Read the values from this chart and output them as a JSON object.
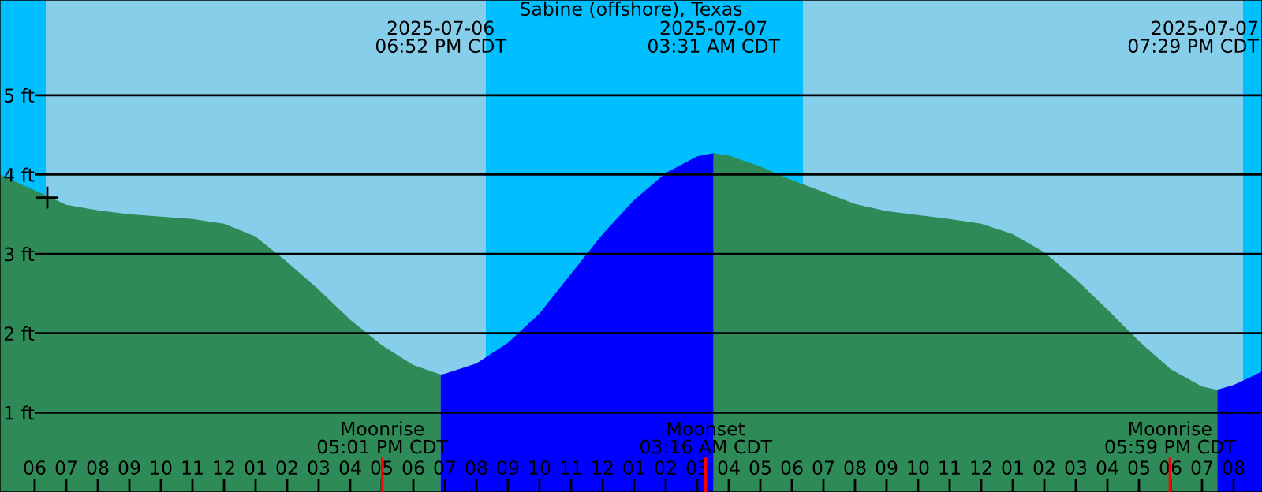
{
  "chart_data": {
    "type": "area",
    "title": "Sabine (offshore), Texas",
    "series": [
      {
        "color": "#2e8b57",
        "x": [
          "2025-07-06T04:54",
          "2025-07-06T06:00",
          "2025-07-06T07:00",
          "2025-07-06T08:00",
          "2025-07-06T09:00",
          "2025-07-06T10:00",
          "2025-07-06T11:00",
          "2025-07-06T12:00",
          "2025-07-06T13:00",
          "2025-07-06T14:00",
          "2025-07-06T15:00",
          "2025-07-06T16:00",
          "2025-07-06T17:00",
          "2025-07-06T18:00",
          "2025-07-06T18:52"
        ],
        "values": [
          4.0,
          3.8,
          3.62,
          3.55,
          3.5,
          3.47,
          3.44,
          3.38,
          3.22,
          2.9,
          2.55,
          2.17,
          1.85,
          1.6,
          1.48
        ]
      },
      {
        "color": "#0000ff",
        "x": [
          "2025-07-06T18:52",
          "2025-07-06T19:00",
          "2025-07-06T20:00",
          "2025-07-06T21:00",
          "2025-07-06T22:00",
          "2025-07-06T23:00",
          "2025-07-07T00:00",
          "2025-07-07T01:00",
          "2025-07-07T02:00",
          "2025-07-07T03:00",
          "2025-07-07T03:31"
        ],
        "values": [
          1.48,
          1.49,
          1.62,
          1.88,
          2.25,
          2.75,
          3.25,
          3.68,
          4.02,
          4.23,
          4.27
        ]
      },
      {
        "color": "#2e8b57",
        "x": [
          "2025-07-07T03:31",
          "2025-07-07T04:00",
          "2025-07-07T05:00",
          "2025-07-07T06:00",
          "2025-07-07T07:00",
          "2025-07-07T08:00",
          "2025-07-07T09:00",
          "2025-07-07T10:00",
          "2025-07-07T11:00",
          "2025-07-07T12:00",
          "2025-07-07T13:00",
          "2025-07-07T14:00",
          "2025-07-07T15:00",
          "2025-07-07T16:00",
          "2025-07-07T17:00",
          "2025-07-07T18:00",
          "2025-07-07T19:00",
          "2025-07-07T19:29"
        ],
        "values": [
          4.27,
          4.24,
          4.1,
          3.93,
          3.78,
          3.63,
          3.54,
          3.49,
          3.44,
          3.38,
          3.25,
          3.02,
          2.68,
          2.3,
          1.9,
          1.55,
          1.33,
          1.29
        ]
      },
      {
        "color": "#0000ff",
        "x": [
          "2025-07-07T19:29",
          "2025-07-07T20:00",
          "2025-07-07T20:30",
          "2025-07-07T20:54"
        ],
        "values": [
          1.29,
          1.35,
          1.44,
          1.52
        ]
      },
      {
        "type": "scatter",
        "color": "#000000",
        "marker": "cross",
        "x": [
          "2025-07-06T06:24"
        ],
        "values": [
          3.71
        ]
      }
    ],
    "bands": [
      {
        "axis": "x",
        "from": "2025-07-06T04:54",
        "to": "2025-07-06T06:21",
        "color": "#00bfff"
      },
      {
        "axis": "x",
        "from": "2025-07-06T06:21",
        "to": "2025-07-06T20:18",
        "color": "#87ceeb"
      },
      {
        "axis": "x",
        "from": "2025-07-06T20:18",
        "to": "2025-07-07T06:21",
        "color": "#00bfff"
      },
      {
        "axis": "x",
        "from": "2025-07-07T06:21",
        "to": "2025-07-07T20:18",
        "color": "#87ceeb"
      },
      {
        "axis": "x",
        "from": "2025-07-07T20:18",
        "to": "2025-07-07T20:54",
        "color": "#00bfff"
      }
    ],
    "annotations": [
      "2025-07-06\n06:52 PM CDT",
      "2025-07-07\n03:31 AM CDT",
      "2025-07-07\n07:29 PM CDT"
    ],
    "ref_lines": [
      {
        "axis": "x",
        "value": "2025-07-06T17:01",
        "label": "Moonrise\n05:01 PM CDT",
        "color": "#ff0000"
      },
      {
        "axis": "x",
        "value": "2025-07-07T03:16",
        "label": "Moonset\n03:16 AM CDT",
        "color": "#ff0000"
      },
      {
        "axis": "x",
        "value": "2025-07-07T17:59",
        "label": "Moonrise\n05:59 PM CDT",
        "color": "#ff0000"
      }
    ],
    "xlim": [
      "2025-07-06T04:54",
      "2025-07-07T20:54"
    ],
    "xticks": [
      {
        "value": "2025-07-06T06:00",
        "label": "06"
      },
      {
        "value": "2025-07-06T07:00",
        "label": "07"
      },
      {
        "value": "2025-07-06T08:00",
        "label": "08"
      },
      {
        "value": "2025-07-06T09:00",
        "label": "09"
      },
      {
        "value": "2025-07-06T10:00",
        "label": "10"
      },
      {
        "value": "2025-07-06T11:00",
        "label": "11"
      },
      {
        "value": "2025-07-06T12:00",
        "label": "12"
      },
      {
        "value": "2025-07-06T13:00",
        "label": "01"
      },
      {
        "value": "2025-07-06T14:00",
        "label": "02"
      },
      {
        "value": "2025-07-06T15:00",
        "label": "03"
      },
      {
        "value": "2025-07-06T16:00",
        "label": "04"
      },
      {
        "value": "2025-07-06T17:00",
        "label": "05"
      },
      {
        "value": "2025-07-06T18:00",
        "label": "06"
      },
      {
        "value": "2025-07-06T19:00",
        "label": "07"
      },
      {
        "value": "2025-07-06T20:00",
        "label": "08"
      },
      {
        "value": "2025-07-06T21:00",
        "label": "09"
      },
      {
        "value": "2025-07-06T22:00",
        "label": "10"
      },
      {
        "value": "2025-07-06T23:00",
        "label": "11"
      },
      {
        "value": "2025-07-07T00:00",
        "label": "12"
      },
      {
        "value": "2025-07-07T01:00",
        "label": "01"
      },
      {
        "value": "2025-07-07T02:00",
        "label": "02"
      },
      {
        "value": "2025-07-07T03:00",
        "label": "03"
      },
      {
        "value": "2025-07-07T04:00",
        "label": "04"
      },
      {
        "value": "2025-07-07T05:00",
        "label": "05"
      },
      {
        "value": "2025-07-07T06:00",
        "label": "06"
      },
      {
        "value": "2025-07-07T07:00",
        "label": "07"
      },
      {
        "value": "2025-07-07T08:00",
        "label": "08"
      },
      {
        "value": "2025-07-07T09:00",
        "label": "09"
      },
      {
        "value": "2025-07-07T10:00",
        "label": "10"
      },
      {
        "value": "2025-07-07T11:00",
        "label": "11"
      },
      {
        "value": "2025-07-07T12:00",
        "label": "12"
      },
      {
        "value": "2025-07-07T13:00",
        "label": "01"
      },
      {
        "value": "2025-07-07T14:00",
        "label": "02"
      },
      {
        "value": "2025-07-07T15:00",
        "label": "03"
      },
      {
        "value": "2025-07-07T16:00",
        "label": "04"
      },
      {
        "value": "2025-07-07T17:00",
        "label": "05"
      },
      {
        "value": "2025-07-07T18:00",
        "label": "06"
      },
      {
        "value": "2025-07-07T19:00",
        "label": "07"
      },
      {
        "value": "2025-07-07T20:00",
        "label": "08"
      }
    ],
    "ylim": [
      0,
      6.2
    ],
    "yticks": [
      {
        "value": 1,
        "label": "1 ft"
      },
      {
        "value": 2,
        "label": "2 ft"
      },
      {
        "value": 3,
        "label": "3 ft"
      },
      {
        "value": 4,
        "label": "4 ft"
      },
      {
        "value": 5,
        "label": "5 ft"
      }
    ],
    "grid": "y"
  }
}
